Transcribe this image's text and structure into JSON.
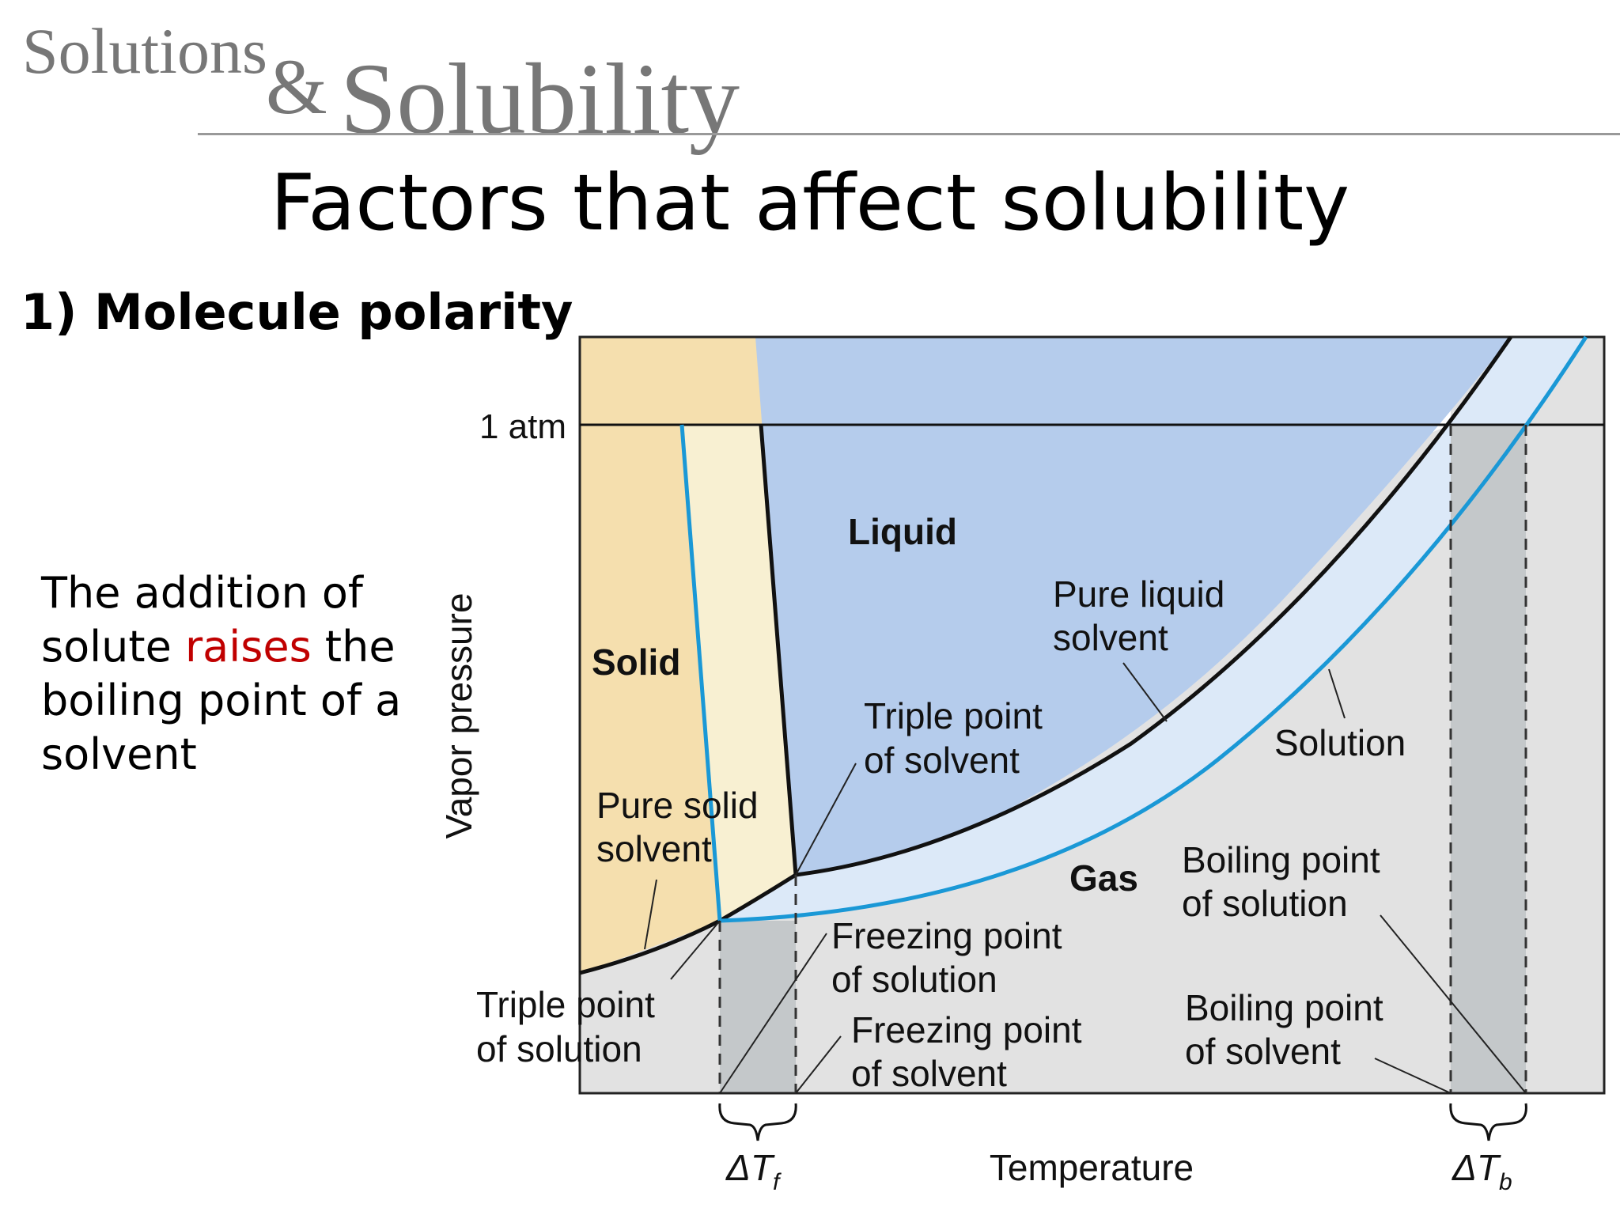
{
  "header": {
    "small": "Solutions",
    "amp": "&",
    "big": "Solubility"
  },
  "slide": {
    "title": "Factors that affect solubility",
    "subtitle": "1) Molecule polarity",
    "body": {
      "before": "The addition of solute ",
      "highlight": "raises",
      "after": " the boiling point of a solvent"
    }
  },
  "diagram": {
    "axis": {
      "y_label": "Vapor pressure",
      "x_label": "Temperature",
      "pressure_tick": "1 atm"
    },
    "regions": {
      "solid": "Solid",
      "liquid": "Liquid",
      "gas": "Gas"
    },
    "labels": {
      "pure_liquid_1": "Pure liquid",
      "pure_liquid_2": "solvent",
      "solution": "Solution",
      "triple_solvent_1": "Triple point",
      "triple_solvent_2": "of solvent",
      "pure_solid_1": "Pure solid",
      "pure_solid_2": "solvent",
      "bp_solution_1": "Boiling point",
      "bp_solution_2": "of solution",
      "fp_solution_1": "Freezing point",
      "fp_solution_2": "of solution",
      "triple_solution_1": "Triple point",
      "triple_solution_2": "of solution",
      "fp_solvent_1": "Freezing point",
      "fp_solvent_2": "of solvent",
      "bp_solvent_1": "Boiling point",
      "bp_solvent_2": "of solvent",
      "delta_tf": "ΔT",
      "delta_tf_sub": "f",
      "delta_tb": "ΔT",
      "delta_tb_sub": "b"
    },
    "colors": {
      "solid": "#f5dfae",
      "solid_light": "#f8f0d2",
      "liquid": "#b5ccec",
      "solution_band": "#dce9f8",
      "gas": "#e2e2e2",
      "delta_band": "#c4c8ca",
      "solvent_curve": "#111111",
      "solution_curve": "#1a98d6"
    }
  }
}
